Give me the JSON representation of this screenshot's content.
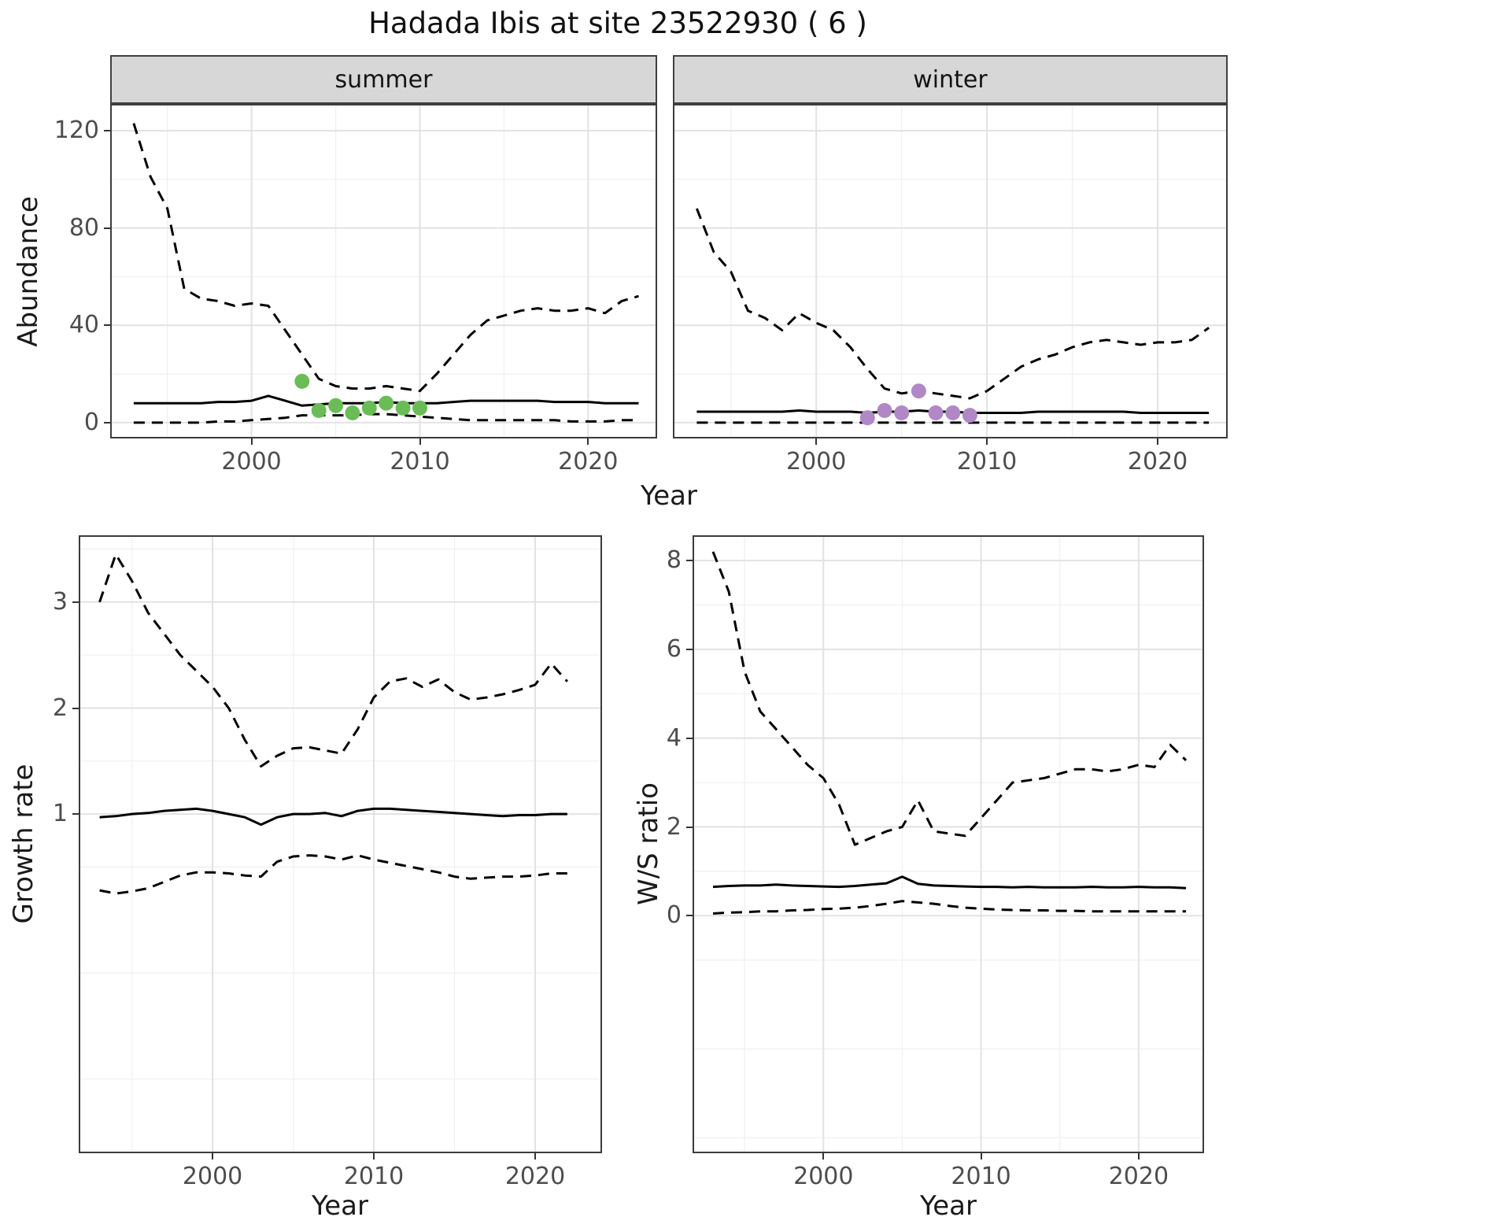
{
  "figure": {
    "title": "Hadada Ibis at site 23522930 ( 6 )",
    "top_xlabel": "Year"
  },
  "colors": {
    "line": "#000000",
    "panel_border": "#3c3c3c",
    "grid_major": "#e2e2e2",
    "grid_minor": "#efefef",
    "strip_bg": "#d7d7d7",
    "axis_text": "#4d4d4d",
    "summer_points": "#6abd56",
    "winter_points": "#b088c5"
  },
  "chart_data": [
    {
      "id": "abundance-summer",
      "type": "line",
      "facet": "summer",
      "ylabel": "Abundance",
      "xlabel": "Year",
      "xlim": [
        1991.6,
        2024.1
      ],
      "ylim": [
        -6.5,
        131
      ],
      "xticks": [
        2000,
        2010,
        2020
      ],
      "yticks": [
        0,
        40,
        80,
        120
      ],
      "xminor": [
        1995,
        2005,
        2015
      ],
      "yminor": [
        20,
        60,
        100
      ],
      "x": [
        1993,
        1994,
        1995,
        1996,
        1997,
        1998,
        1999,
        2000,
        2001,
        2002,
        2003,
        2004,
        2005,
        2006,
        2007,
        2008,
        2009,
        2010,
        2011,
        2012,
        2013,
        2014,
        2015,
        2016,
        2017,
        2018,
        2019,
        2020,
        2021,
        2022,
        2023
      ],
      "series": [
        {
          "name": "upper_95ci",
          "style": "dashed",
          "values": [
            123,
            101,
            88,
            55,
            51,
            50,
            48,
            49,
            48,
            38,
            28,
            18,
            15,
            14,
            14,
            15,
            14,
            13,
            20,
            28,
            36,
            42,
            44,
            46,
            47,
            46,
            46,
            47,
            45,
            50,
            52
          ]
        },
        {
          "name": "median",
          "style": "solid",
          "values": [
            8,
            8,
            8,
            8,
            8,
            8.5,
            8.5,
            9,
            11,
            9,
            7,
            7.5,
            8,
            8,
            8,
            8.5,
            8,
            8,
            8,
            8.5,
            9,
            9,
            9,
            9,
            9,
            8.5,
            8.5,
            8.5,
            8,
            8,
            8
          ]
        },
        {
          "name": "lower_95ci",
          "style": "dashed",
          "values": [
            0,
            0,
            0,
            0,
            0,
            0.5,
            0.5,
            1,
            1.5,
            2,
            3,
            3,
            3,
            3,
            3.5,
            3.5,
            3,
            2.5,
            2,
            1.5,
            1,
            1,
            1,
            1,
            1,
            1,
            0.5,
            0.5,
            0.5,
            1,
            1
          ]
        }
      ],
      "points": {
        "name": "observed_counts",
        "color": "#6abd56",
        "x": [
          2003,
          2004,
          2005,
          2006,
          2007,
          2008,
          2009,
          2010
        ],
        "y": [
          17,
          5,
          7,
          4,
          6,
          8,
          6,
          6
        ]
      }
    },
    {
      "id": "abundance-winter",
      "type": "line",
      "facet": "winter",
      "xlabel": "Year",
      "xlim": [
        1991.6,
        2024.1
      ],
      "ylim": [
        -6.5,
        131
      ],
      "xticks": [
        2000,
        2010,
        2020
      ],
      "yticks": [
        0,
        40,
        80,
        120
      ],
      "xminor": [
        1995,
        2005,
        2015
      ],
      "yminor": [
        20,
        60,
        100
      ],
      "x": [
        1993,
        1994,
        1995,
        1996,
        1997,
        1998,
        1999,
        2000,
        2001,
        2002,
        2003,
        2004,
        2005,
        2006,
        2007,
        2008,
        2009,
        2010,
        2011,
        2012,
        2013,
        2014,
        2015,
        2016,
        2017,
        2018,
        2019,
        2020,
        2021,
        2022,
        2023
      ],
      "series": [
        {
          "name": "upper_95ci",
          "style": "dashed",
          "values": [
            88,
            70,
            62,
            46,
            43,
            38,
            45,
            41,
            38,
            31,
            22,
            14,
            12,
            13,
            12,
            11,
            10,
            13,
            18,
            23,
            26,
            28,
            31,
            33,
            34,
            33,
            32,
            33,
            33,
            34,
            39
          ]
        },
        {
          "name": "median",
          "style": "solid",
          "values": [
            4.5,
            4.5,
            4.5,
            4.5,
            4.5,
            4.5,
            5,
            4.5,
            4.5,
            4.5,
            4,
            4.5,
            4.5,
            5,
            4.5,
            4.5,
            4,
            4,
            4,
            4,
            4.5,
            4.5,
            4.5,
            4.5,
            4.5,
            4.5,
            4,
            4,
            4,
            4,
            4
          ]
        },
        {
          "name": "lower_95ci",
          "style": "dashed",
          "values": [
            0,
            0,
            0,
            0,
            0,
            0,
            0,
            0,
            0,
            0,
            0,
            0,
            0,
            0,
            0,
            0,
            0,
            0,
            0,
            0,
            0,
            0,
            0,
            0,
            0,
            0,
            0,
            0,
            0,
            0,
            0
          ]
        }
      ],
      "points": {
        "name": "observed_counts",
        "color": "#b088c5",
        "x": [
          2003,
          2004,
          2005,
          2006,
          2007,
          2008,
          2009
        ],
        "y": [
          2,
          5,
          4,
          13,
          4,
          4,
          3
        ]
      }
    },
    {
      "id": "growth-rate",
      "type": "line",
      "ylabel": "Growth rate",
      "xlabel": "Year",
      "xlim": [
        1991.7,
        2024.15
      ],
      "ylim": [
        -2.2,
        3.63
      ],
      "xticks": [
        2000,
        2010,
        2020
      ],
      "yticks": [
        1,
        2,
        3
      ],
      "xminor": [
        1995,
        2005,
        2015
      ],
      "yminor": [
        -1.5,
        -0.5,
        0.5,
        1.5,
        2.5,
        3.5
      ],
      "x": [
        1993,
        1994,
        1995,
        1996,
        1997,
        1998,
        1999,
        2000,
        2001,
        2002,
        2003,
        2004,
        2005,
        2006,
        2007,
        2008,
        2009,
        2010,
        2011,
        2012,
        2013,
        2014,
        2015,
        2016,
        2017,
        2018,
        2019,
        2020,
        2021,
        2022
      ],
      "series": [
        {
          "name": "upper_95ci",
          "style": "dashed",
          "values": [
            3.0,
            3.45,
            3.2,
            2.9,
            2.7,
            2.5,
            2.35,
            2.2,
            2.0,
            1.7,
            1.45,
            1.55,
            1.62,
            1.63,
            1.6,
            1.57,
            1.8,
            2.1,
            2.25,
            2.28,
            2.2,
            2.27,
            2.15,
            2.08,
            2.1,
            2.13,
            2.17,
            2.22,
            2.42,
            2.25
          ]
        },
        {
          "name": "median",
          "style": "solid",
          "values": [
            0.97,
            0.98,
            1.0,
            1.01,
            1.03,
            1.04,
            1.05,
            1.03,
            1.0,
            0.97,
            0.9,
            0.97,
            1.0,
            1.0,
            1.01,
            0.98,
            1.03,
            1.05,
            1.05,
            1.04,
            1.03,
            1.02,
            1.01,
            1.0,
            0.99,
            0.98,
            0.99,
            0.99,
            1.0,
            1.0
          ]
        },
        {
          "name": "lower_95ci",
          "style": "dashed",
          "values": [
            0.28,
            0.25,
            0.27,
            0.3,
            0.36,
            0.42,
            0.45,
            0.45,
            0.44,
            0.42,
            0.41,
            0.55,
            0.6,
            0.61,
            0.6,
            0.57,
            0.61,
            0.57,
            0.54,
            0.51,
            0.48,
            0.45,
            0.41,
            0.39,
            0.4,
            0.41,
            0.41,
            0.42,
            0.44,
            0.44
          ]
        }
      ]
    },
    {
      "id": "ws-ratio",
      "type": "line",
      "ylabel": "W/S ratio",
      "xlabel": "Year",
      "xlim": [
        1991.7,
        2024.15
      ],
      "ylim": [
        -5.35,
        8.57
      ],
      "xticks": [
        2000,
        2010,
        2020
      ],
      "yticks": [
        0,
        2,
        4,
        6,
        8
      ],
      "xminor": [
        1995,
        2005,
        2015
      ],
      "yminor": [
        -5,
        -3,
        -1,
        1,
        3,
        5,
        7
      ],
      "x": [
        1993,
        1994,
        1995,
        1996,
        1997,
        1998,
        1999,
        2000,
        2001,
        2002,
        2003,
        2004,
        2005,
        2006,
        2007,
        2008,
        2009,
        2010,
        2011,
        2012,
        2013,
        2014,
        2015,
        2016,
        2017,
        2018,
        2019,
        2020,
        2021,
        2022,
        2023
      ],
      "series": [
        {
          "name": "upper_95ci",
          "style": "dashed",
          "values": [
            8.2,
            7.3,
            5.5,
            4.6,
            4.2,
            3.8,
            3.4,
            3.1,
            2.5,
            1.6,
            1.75,
            1.9,
            2.0,
            2.6,
            1.9,
            1.85,
            1.8,
            2.2,
            2.6,
            3.0,
            3.05,
            3.1,
            3.2,
            3.3,
            3.3,
            3.25,
            3.3,
            3.4,
            3.35,
            3.85,
            3.5
          ]
        },
        {
          "name": "median",
          "style": "solid",
          "values": [
            0.65,
            0.67,
            0.68,
            0.68,
            0.7,
            0.68,
            0.67,
            0.66,
            0.65,
            0.67,
            0.7,
            0.73,
            0.88,
            0.72,
            0.68,
            0.67,
            0.66,
            0.65,
            0.65,
            0.64,
            0.65,
            0.64,
            0.64,
            0.64,
            0.65,
            0.64,
            0.64,
            0.65,
            0.64,
            0.64,
            0.62
          ]
        },
        {
          "name": "lower_95ci",
          "style": "dashed",
          "values": [
            0.05,
            0.07,
            0.08,
            0.1,
            0.1,
            0.12,
            0.13,
            0.15,
            0.16,
            0.18,
            0.22,
            0.27,
            0.33,
            0.3,
            0.27,
            0.22,
            0.18,
            0.16,
            0.14,
            0.13,
            0.12,
            0.12,
            0.11,
            0.11,
            0.1,
            0.1,
            0.1,
            0.1,
            0.1,
            0.1,
            0.1
          ]
        }
      ]
    }
  ]
}
